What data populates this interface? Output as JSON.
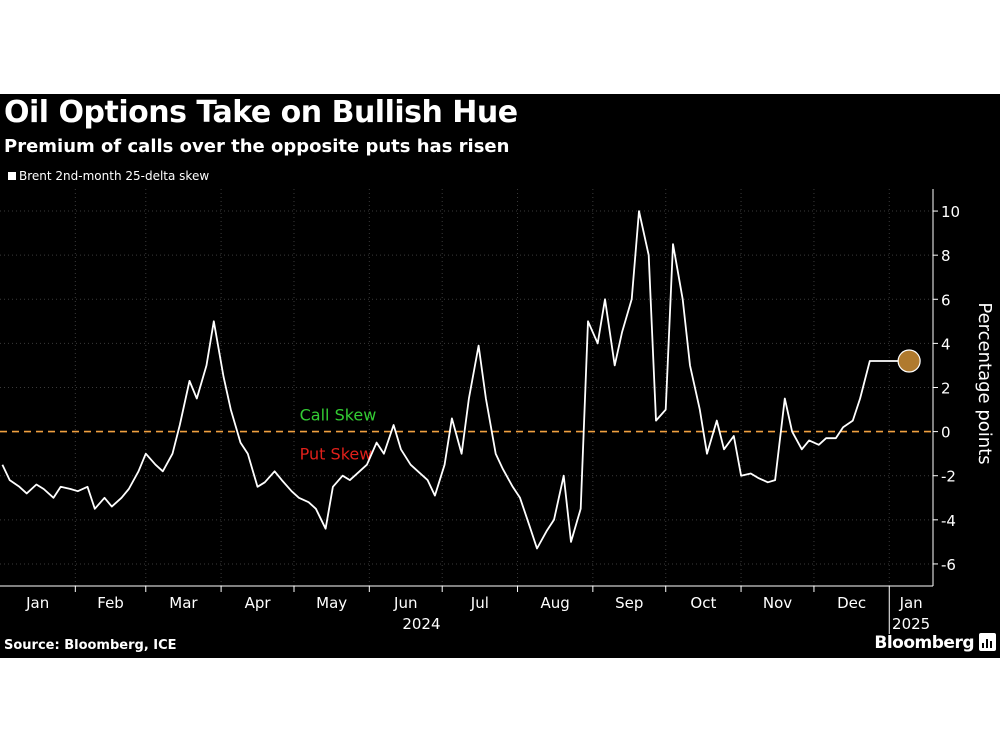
{
  "title": "Oil Options Take on Bullish Hue",
  "subtitle": "Premium of calls over the opposite puts has risen",
  "source": "Source: Bloomberg, ICE",
  "brand": "Bloomberg",
  "colors": {
    "background": "#000000",
    "line": "#ffffff",
    "zero_line": "#f0a040",
    "call_label": "#33cc33",
    "put_label": "#e0201a",
    "end_marker": "#b07a2e",
    "grid": "#3a3a3a"
  },
  "chart_data": {
    "type": "line",
    "title": "Oil Options Take on Bullish Hue",
    "subtitle": "Premium of calls over the opposite puts has risen",
    "ylabel": "Percentage points",
    "ylim": [
      -7,
      11
    ],
    "yticks": [
      -6,
      -4,
      -2,
      0,
      2,
      4,
      6,
      8,
      10
    ],
    "y_axis_side": "right",
    "grid": true,
    "legend": "top-left",
    "x_tick_labels": [
      "Jan",
      "Feb",
      "Mar",
      "Apr",
      "May",
      "Jun",
      "Jul",
      "Aug",
      "Sep",
      "Oct",
      "Nov",
      "Dec",
      "Jan"
    ],
    "x_year_labels": [
      "2024",
      "2025"
    ],
    "annotations": [
      {
        "text": "Call Skew",
        "side": "above zero"
      },
      {
        "text": "Put Skew",
        "side": "below zero"
      }
    ],
    "reference_line": {
      "y": 0,
      "style": "dashed"
    },
    "series": [
      {
        "name": "Brent 2nd-month 25-delta skew",
        "x": [
          "2024-01-02",
          "2024-01-05",
          "2024-01-09",
          "2024-01-12",
          "2024-01-16",
          "2024-01-19",
          "2024-01-23",
          "2024-01-26",
          "2024-01-30",
          "2024-02-02",
          "2024-02-06",
          "2024-02-09",
          "2024-02-13",
          "2024-02-16",
          "2024-02-20",
          "2024-02-23",
          "2024-02-27",
          "2024-03-01",
          "2024-03-05",
          "2024-03-08",
          "2024-03-12",
          "2024-03-15",
          "2024-03-19",
          "2024-03-22",
          "2024-03-26",
          "2024-03-29",
          "2024-04-02",
          "2024-04-05",
          "2024-04-09",
          "2024-04-12",
          "2024-04-16",
          "2024-04-19",
          "2024-04-23",
          "2024-04-26",
          "2024-04-30",
          "2024-05-03",
          "2024-05-07",
          "2024-05-10",
          "2024-05-14",
          "2024-05-17",
          "2024-05-21",
          "2024-05-24",
          "2024-05-28",
          "2024-05-31",
          "2024-06-04",
          "2024-06-07",
          "2024-06-11",
          "2024-06-14",
          "2024-06-18",
          "2024-06-21",
          "2024-06-25",
          "2024-06-28",
          "2024-07-02",
          "2024-07-05",
          "2024-07-09",
          "2024-07-12",
          "2024-07-16",
          "2024-07-19",
          "2024-07-23",
          "2024-07-26",
          "2024-07-30",
          "2024-08-02",
          "2024-08-06",
          "2024-08-09",
          "2024-08-13",
          "2024-08-16",
          "2024-08-20",
          "2024-08-23",
          "2024-08-27",
          "2024-08-30",
          "2024-09-03",
          "2024-09-06",
          "2024-09-10",
          "2024-09-13",
          "2024-09-17",
          "2024-09-20",
          "2024-09-24",
          "2024-09-27",
          "2024-10-01",
          "2024-10-04",
          "2024-10-08",
          "2024-10-11",
          "2024-10-15",
          "2024-10-18",
          "2024-10-22",
          "2024-10-25",
          "2024-10-29",
          "2024-11-01",
          "2024-11-05",
          "2024-11-08",
          "2024-11-12",
          "2024-11-15",
          "2024-11-19",
          "2024-11-22",
          "2024-11-26",
          "2024-11-29",
          "2024-12-03",
          "2024-12-06",
          "2024-12-10",
          "2024-12-13",
          "2024-12-17",
          "2024-12-20",
          "2024-12-24",
          "2024-12-27",
          "2024-12-31",
          "2025-01-03",
          "2025-01-07",
          "2025-01-10"
        ],
        "y": [
          -1.5,
          -2.2,
          -2.5,
          -2.8,
          -2.4,
          -2.6,
          -3.0,
          -2.5,
          -2.6,
          -2.7,
          -2.5,
          -3.5,
          -3.0,
          -3.4,
          -3.0,
          -2.6,
          -1.8,
          -1.0,
          -1.5,
          -1.8,
          -1.0,
          0.3,
          2.3,
          1.5,
          3.0,
          5.0,
          2.5,
          1.0,
          -0.5,
          -1.0,
          -2.5,
          -2.3,
          -1.8,
          -2.2,
          -2.7,
          -3.0,
          -3.2,
          -3.5,
          -4.4,
          -2.5,
          -2.0,
          -2.2,
          -1.8,
          -1.5,
          -0.5,
          -1.0,
          0.3,
          -0.8,
          -1.5,
          -1.8,
          -2.2,
          -2.9,
          -1.5,
          0.6,
          -1.0,
          1.5,
          3.9,
          1.5,
          -1.0,
          -1.7,
          -2.5,
          -3.0,
          -4.3,
          -5.3,
          -4.5,
          -4.0,
          -2.0,
          -5.0,
          -3.5,
          5.0,
          4.0,
          6.0,
          3.0,
          4.5,
          6.0,
          10.0,
          8.0,
          0.5,
          1.0,
          8.5,
          6.0,
          3.0,
          1.0,
          -1.0,
          0.5,
          -0.8,
          -0.2,
          -2.0,
          -1.9,
          -2.1,
          -2.3,
          -2.2,
          1.5,
          0.0,
          -0.8,
          -0.4,
          -0.6,
          -0.3,
          -0.3,
          0.2,
          0.5,
          1.5,
          3.2,
          3.2,
          3.2,
          3.2,
          3.2,
          3.2
        ],
        "last_value": 3.2
      }
    ]
  }
}
